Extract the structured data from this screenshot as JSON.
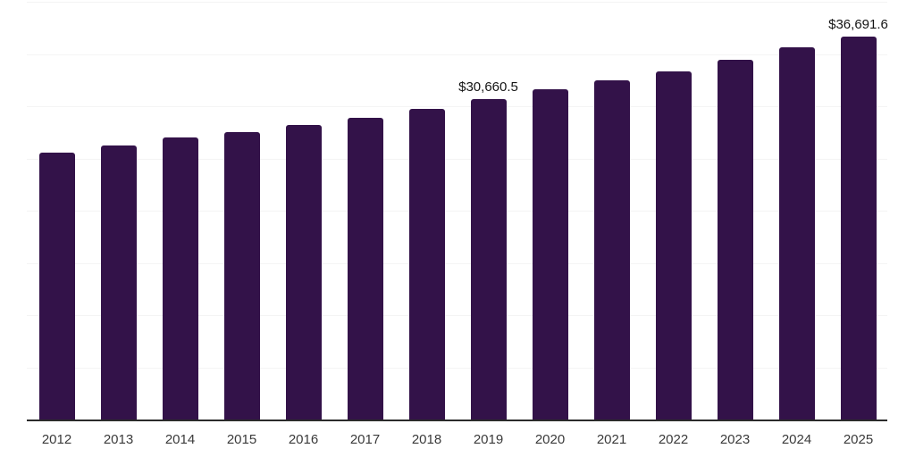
{
  "chart_data": {
    "type": "bar",
    "title": "",
    "xlabel": "",
    "ylabel": "",
    "categories": [
      "2012",
      "2013",
      "2014",
      "2015",
      "2016",
      "2017",
      "2018",
      "2019",
      "2020",
      "2021",
      "2022",
      "2023",
      "2024",
      "2025"
    ],
    "values": [
      25590,
      26240,
      26970,
      27490,
      28180,
      28910,
      29710,
      30660.5,
      31610,
      32490,
      33370,
      34450,
      35610,
      36691.6
    ],
    "point_labels": [
      null,
      null,
      null,
      null,
      null,
      null,
      null,
      "$30,660.5",
      null,
      null,
      null,
      null,
      null,
      "$36,691.6"
    ],
    "ylim": [
      0,
      40000
    ],
    "gridline_step": 5000,
    "grid": "horizontal",
    "y_axis_tick_labels": "none",
    "legend": "none",
    "colors": {
      "bar": "#331249",
      "axis_line": "#2b2b2b",
      "gridline": "#f4f4f4",
      "x_tick_label": "#3a3a3a",
      "data_label": "#141414",
      "background": "#ffffff"
    }
  }
}
